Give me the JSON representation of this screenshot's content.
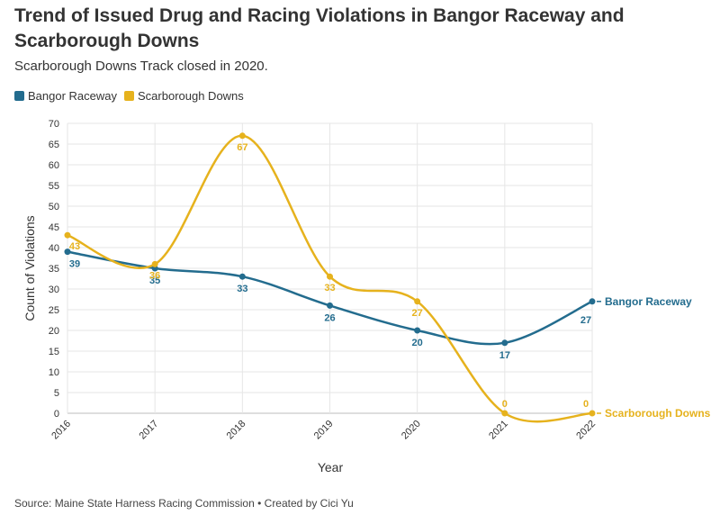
{
  "title": "Trend of Issued Drug and Racing Violations in Bangor Raceway and Scarborough Downs",
  "subtitle": "Scarborough Downs Track closed in 2020.",
  "source": "Source: Maine State Harness Racing Commission • Created by Cici Yu",
  "chart_data": {
    "type": "line",
    "x": [
      "2016",
      "2017",
      "2018",
      "2019",
      "2020",
      "2021",
      "2022"
    ],
    "xlabel": "Year",
    "ylabel": "Count of Violations",
    "ylim": [
      0,
      70
    ],
    "yticks": [
      0,
      5,
      10,
      15,
      20,
      25,
      30,
      35,
      40,
      45,
      50,
      55,
      60,
      65,
      70
    ],
    "grid": true,
    "legend": "top-left",
    "series": [
      {
        "name": "Bangor Raceway",
        "color": "#236c8e",
        "values": [
          39,
          35,
          33,
          26,
          20,
          17,
          27
        ],
        "end_label": "Bangor Raceway"
      },
      {
        "name": "Scarborough Downs",
        "color": "#e6b21d",
        "values": [
          43,
          36,
          67,
          33,
          27,
          0,
          0
        ],
        "end_label": "Scarborough Downs"
      }
    ]
  }
}
